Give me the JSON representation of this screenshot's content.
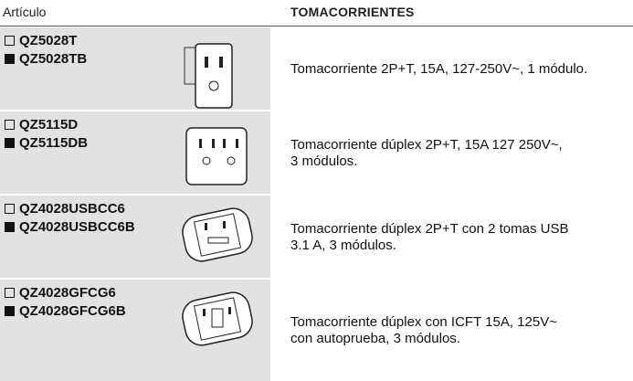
{
  "header": {
    "article": "Artículo",
    "category": "TOMACORRIENTES"
  },
  "rows": [
    {
      "codes": [
        "QZ5028T",
        "QZ5028TB"
      ],
      "description": [
        "Tomacorriente 2P+T, 15A, 127-250V~, 1 módulo."
      ]
    },
    {
      "codes": [
        "QZ5115D",
        "QZ5115DB"
      ],
      "description": [
        "Tomacorriente dúplex 2P+T, 15A 127 250V~,",
        "3 módulos."
      ]
    },
    {
      "codes": [
        "QZ4028USBCC6",
        "QZ4028USBCC6B"
      ],
      "description": [
        "Tomacorriente dúplex 2P+T con 2 tomas USB",
        "3.1 A, 3 módulos."
      ]
    },
    {
      "codes": [
        "QZ4028GFCG6",
        "QZ4028GFCG6B"
      ],
      "description": [
        "Tomacorriente dúplex con ICFT 15A, 125V~",
        "con autoprueba, 3 módulos."
      ]
    }
  ]
}
